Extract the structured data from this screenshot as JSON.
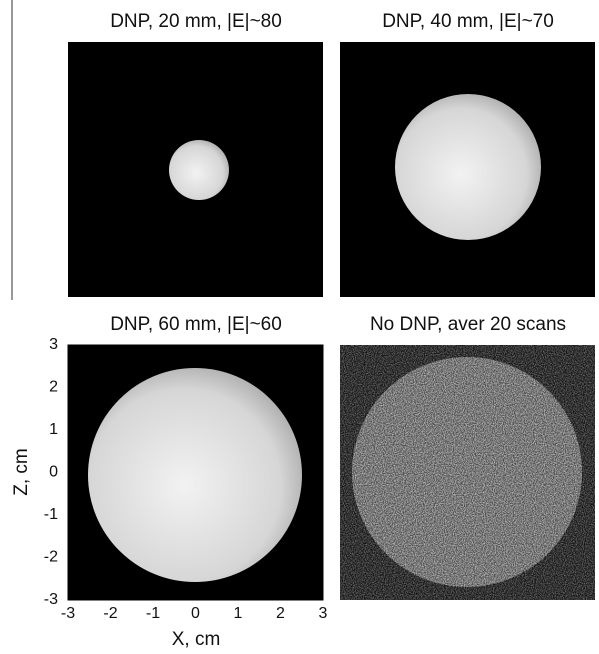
{
  "chart_data": [
    {
      "type": "image",
      "title": "DNP, 20 mm, |E|~80"
    },
    {
      "type": "image",
      "title": "DNP, 40 mm, |E|~70"
    },
    {
      "type": "image",
      "title": "DNP, 60 mm, |E|~60",
      "xlabel": "X, cm",
      "ylabel": "Z, cm",
      "xlim": [
        -3,
        3
      ],
      "ylim": [
        -3,
        3
      ],
      "xticks": [
        -3,
        -2,
        -1,
        0,
        1,
        2,
        3
      ],
      "yticks": [
        -3,
        -2,
        -1,
        0,
        1,
        2,
        3
      ]
    },
    {
      "type": "image",
      "title": "No DNP, aver 20 scans"
    }
  ]
}
